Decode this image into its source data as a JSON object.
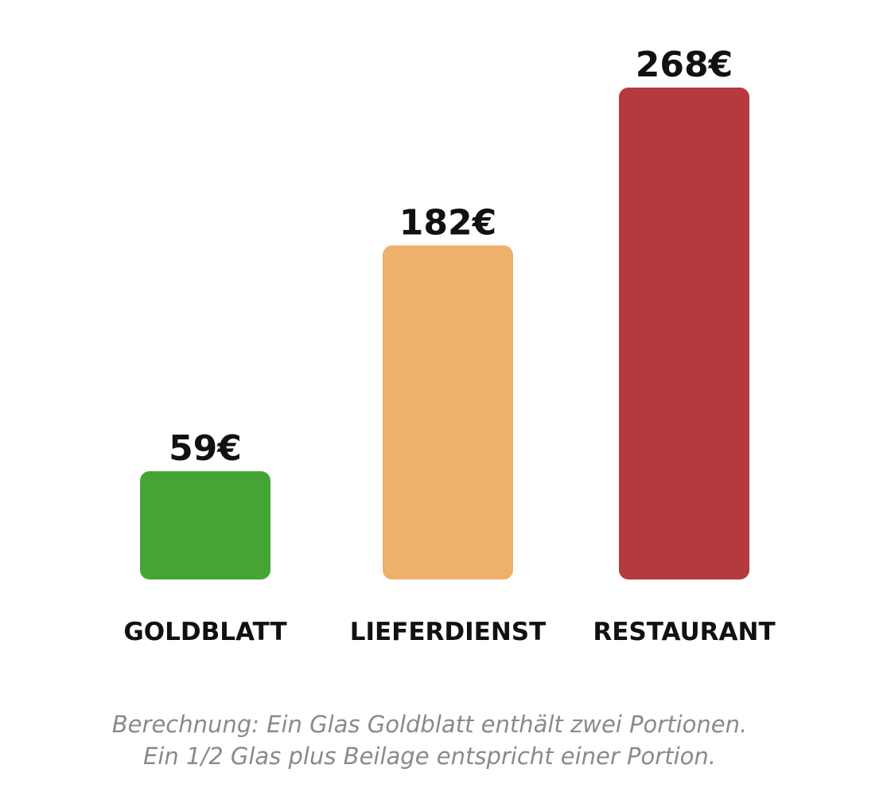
{
  "chart_data": {
    "type": "bar",
    "categories": [
      "GOLDBLATT",
      "LIEFERDIENST",
      "RESTAURANT"
    ],
    "values": [
      59,
      182,
      268
    ],
    "value_labels": [
      "59€",
      "182€",
      "268€"
    ],
    "colors": [
      "#44a535",
      "#eeb06a",
      "#b43a3e"
    ],
    "title": "",
    "xlabel": "",
    "ylabel": "",
    "ylim": [
      0,
      268
    ],
    "grid": false,
    "legend": "none"
  },
  "footnote": {
    "line1": "Berechnung: Ein Glas Goldblatt enthält zwei Portionen.",
    "line2": "Ein 1/2 Glas plus Beilage entspricht einer Portion."
  }
}
